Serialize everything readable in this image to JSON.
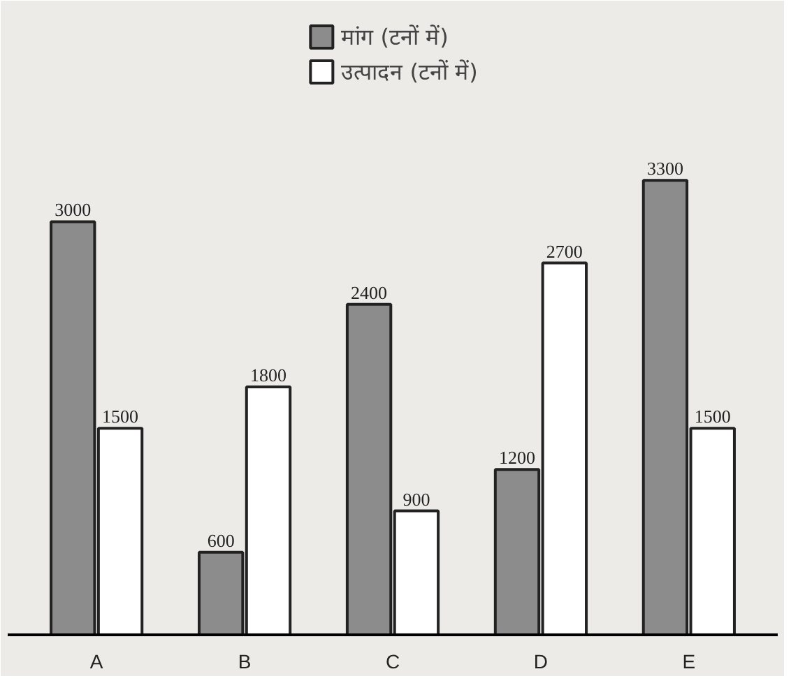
{
  "chart_data": {
    "type": "bar",
    "categories": [
      "A",
      "B",
      "C",
      "D",
      "E"
    ],
    "series": [
      {
        "name": "मांग (टनों में)",
        "color": "#8c8c8c",
        "values": [
          3000,
          600,
          2400,
          1200,
          3300
        ]
      },
      {
        "name": "उत्पादन (टनों में)",
        "color": "#ffffff",
        "values": [
          1500,
          1800,
          900,
          2700,
          1500
        ]
      }
    ],
    "data_labels": true,
    "legend": "top",
    "grid": false
  }
}
